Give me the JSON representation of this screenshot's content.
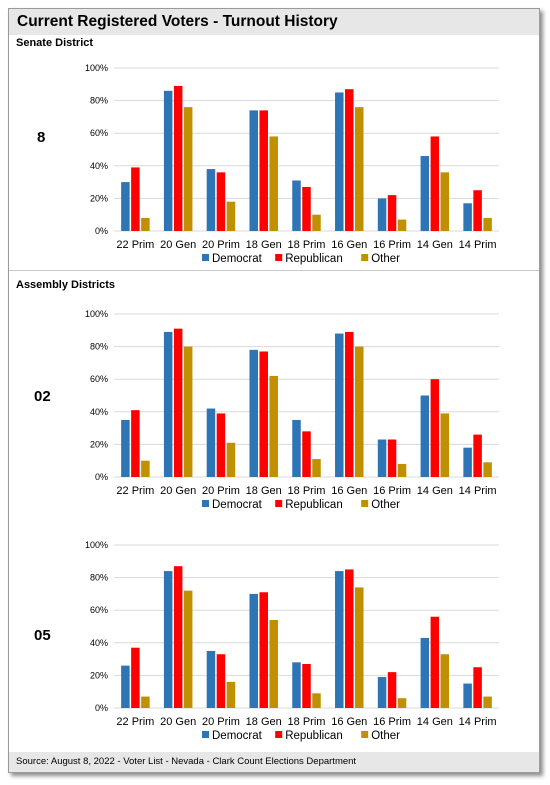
{
  "title": "Current Registered Voters - Turnout History",
  "sections": {
    "senate": "Senate District",
    "assembly": "Assembly Districts"
  },
  "source": "Source: August 8, 2022 - Voter List - Nevada - Clark Count Elections Department",
  "colors": {
    "Democrat": "#2e75b6",
    "Republican": "#ff0000",
    "Other": "#bf9000"
  },
  "chart_data": [
    {
      "type": "bar",
      "district": "8",
      "categories": [
        "22 Prim",
        "20 Gen",
        "20 Prim",
        "18 Gen",
        "18 Prim",
        "16 Gen",
        "16 Prim",
        "14 Gen",
        "14 Prim"
      ],
      "series": [
        {
          "name": "Democrat",
          "values": [
            30,
            86,
            38,
            74,
            31,
            85,
            20,
            46,
            17
          ]
        },
        {
          "name": "Republican",
          "values": [
            39,
            89,
            36,
            74,
            27,
            87,
            22,
            58,
            25
          ]
        },
        {
          "name": "Other",
          "values": [
            8,
            76,
            18,
            58,
            10,
            76,
            7,
            36,
            8
          ]
        }
      ],
      "yticks": [
        "0%",
        "20%",
        "40%",
        "60%",
        "80%",
        "100%"
      ],
      "ylim": [
        0,
        100
      ],
      "legend": "bottom"
    },
    {
      "type": "bar",
      "district": "02",
      "categories": [
        "22 Prim",
        "20 Gen",
        "20 Prim",
        "18 Gen",
        "18 Prim",
        "16 Gen",
        "16 Prim",
        "14 Gen",
        "14 Prim"
      ],
      "series": [
        {
          "name": "Democrat",
          "values": [
            35,
            89,
            42,
            78,
            35,
            88,
            23,
            50,
            18
          ]
        },
        {
          "name": "Republican",
          "values": [
            41,
            91,
            39,
            77,
            28,
            89,
            23,
            60,
            26
          ]
        },
        {
          "name": "Other",
          "values": [
            10,
            80,
            21,
            62,
            11,
            80,
            8,
            39,
            9
          ]
        }
      ],
      "yticks": [
        "0%",
        "20%",
        "40%",
        "60%",
        "80%",
        "100%"
      ],
      "ylim": [
        0,
        100
      ],
      "legend": "bottom"
    },
    {
      "type": "bar",
      "district": "05",
      "categories": [
        "22 Prim",
        "20 Gen",
        "20 Prim",
        "18 Gen",
        "18 Prim",
        "16 Gen",
        "16 Prim",
        "14 Gen",
        "14 Prim"
      ],
      "series": [
        {
          "name": "Democrat",
          "values": [
            26,
            84,
            35,
            70,
            28,
            84,
            19,
            43,
            15
          ]
        },
        {
          "name": "Republican",
          "values": [
            37,
            87,
            33,
            71,
            27,
            85,
            22,
            56,
            25
          ]
        },
        {
          "name": "Other",
          "values": [
            7,
            72,
            16,
            54,
            9,
            74,
            6,
            33,
            7
          ]
        }
      ],
      "yticks": [
        "0%",
        "20%",
        "40%",
        "60%",
        "80%",
        "100%"
      ],
      "ylim": [
        0,
        100
      ],
      "legend": "bottom"
    }
  ]
}
